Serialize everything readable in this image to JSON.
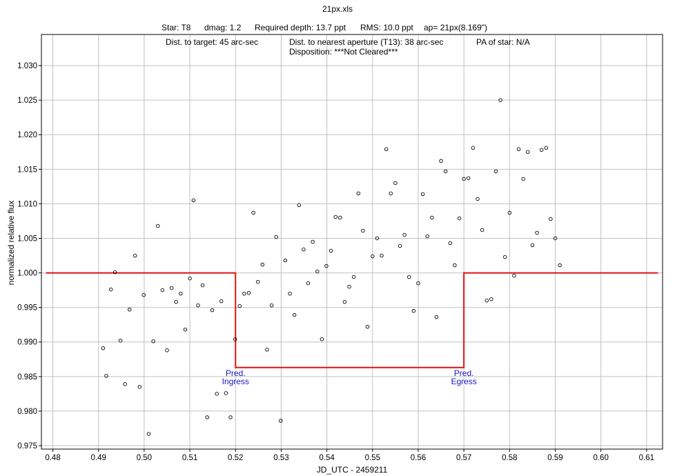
{
  "chart_data": {
    "type": "scatter",
    "title": "21px.xls",
    "header": {
      "star": "Star: T8",
      "dmag": "dmag: 1.2",
      "required_depth": "Required depth: 13.7 ppt",
      "rms": "RMS: 10.0 ppt",
      "aperture": "ap= 21px(8.169\")"
    },
    "info": {
      "dist_target": "Dist. to target: 45 arc-sec",
      "dist_nearest": "Dist. to nearest aperture (T13): 38 arc-sec",
      "pa": "PA of star: N/A",
      "disposition": "Disposition: ***Not Cleared***"
    },
    "xlabel": "JD_UTC - 2459211",
    "ylabel": "normalized relative flux",
    "xlim": [
      0.4775,
      0.6135
    ],
    "ylim": [
      0.9745,
      1.0345
    ],
    "x_ticks": [
      "0.48",
      "0.49",
      "0.50",
      "0.51",
      "0.52",
      "0.53",
      "0.54",
      "0.55",
      "0.56",
      "0.57",
      "0.58",
      "0.59",
      "0.60",
      "0.61"
    ],
    "y_ticks": [
      "0.975",
      "0.980",
      "0.985",
      "0.990",
      "0.995",
      "1.000",
      "1.005",
      "1.010",
      "1.015",
      "1.020",
      "1.025",
      "1.030"
    ],
    "grid": true,
    "colors": {
      "model": "#e01010",
      "annotation": "#1515c8",
      "points": "#000000",
      "grid": "#c0c0c0"
    },
    "annotations": [
      {
        "line1": "Pred.",
        "line2": "Ingress",
        "x": 0.52,
        "y": 0.9851
      },
      {
        "line1": "Pred.",
        "line2": "Egress",
        "x": 0.57,
        "y": 0.9851
      }
    ],
    "model": {
      "x": [
        0.4785,
        0.52,
        0.52,
        0.57,
        0.57,
        0.6125
      ],
      "y": [
        1.0,
        1.0,
        0.9863,
        0.9863,
        1.0,
        1.0
      ]
    },
    "points": [
      [
        0.491,
        0.9891
      ],
      [
        0.4917,
        0.9851
      ],
      [
        0.4927,
        0.9976
      ],
      [
        0.4936,
        1.0001
      ],
      [
        0.4948,
        0.9902
      ],
      [
        0.4958,
        0.9839
      ],
      [
        0.4968,
        0.9947
      ],
      [
        0.498,
        1.0025
      ],
      [
        0.499,
        0.9835
      ],
      [
        0.4999,
        0.9968
      ],
      [
        0.501,
        0.9767
      ],
      [
        0.502,
        0.9901
      ],
      [
        0.503,
        1.0068
      ],
      [
        0.504,
        0.9975
      ],
      [
        0.505,
        0.9888
      ],
      [
        0.506,
        0.9978
      ],
      [
        0.507,
        0.9958
      ],
      [
        0.508,
        0.997
      ],
      [
        0.509,
        0.9918
      ],
      [
        0.51,
        0.9992
      ],
      [
        0.5108,
        1.0105
      ],
      [
        0.5118,
        0.9953
      ],
      [
        0.5128,
        0.9982
      ],
      [
        0.5138,
        0.9791
      ],
      [
        0.5149,
        0.9946
      ],
      [
        0.5159,
        0.9825
      ],
      [
        0.5169,
        0.9959
      ],
      [
        0.5179,
        0.9826
      ],
      [
        0.5189,
        0.9791
      ],
      [
        0.5199,
        0.9904
      ],
      [
        0.5209,
        0.9952
      ],
      [
        0.5219,
        0.997
      ],
      [
        0.5229,
        0.9971
      ],
      [
        0.5239,
        1.0087
      ],
      [
        0.5249,
        0.9987
      ],
      [
        0.5259,
        1.0012
      ],
      [
        0.5269,
        0.9889
      ],
      [
        0.5279,
        0.9953
      ],
      [
        0.5289,
        1.0052
      ],
      [
        0.5299,
        0.9786
      ],
      [
        0.5309,
        1.0018
      ],
      [
        0.5319,
        0.997
      ],
      [
        0.5329,
        0.9939
      ],
      [
        0.5339,
        1.0098
      ],
      [
        0.5349,
        1.0034
      ],
      [
        0.5359,
        0.9985
      ],
      [
        0.5369,
        1.0045
      ],
      [
        0.5379,
        1.0002
      ],
      [
        0.5389,
        0.9904
      ],
      [
        0.5399,
        1.001
      ],
      [
        0.5409,
        1.0032
      ],
      [
        0.5419,
        1.0081
      ],
      [
        0.5429,
        1.008
      ],
      [
        0.5439,
        0.9958
      ],
      [
        0.5449,
        0.998
      ],
      [
        0.5459,
        0.9994
      ],
      [
        0.5469,
        1.0115
      ],
      [
        0.5479,
        1.0061
      ],
      [
        0.5489,
        0.9922
      ],
      [
        0.55,
        1.0024
      ],
      [
        0.551,
        1.005
      ],
      [
        0.552,
        1.0025
      ],
      [
        0.553,
        1.0179
      ],
      [
        0.554,
        1.0115
      ],
      [
        0.555,
        1.013
      ],
      [
        0.556,
        1.0039
      ],
      [
        0.557,
        1.0055
      ],
      [
        0.558,
        0.9994
      ],
      [
        0.559,
        0.9945
      ],
      [
        0.56,
        0.9985
      ],
      [
        0.561,
        1.0114
      ],
      [
        0.562,
        1.0053
      ],
      [
        0.563,
        1.008
      ],
      [
        0.564,
        0.9936
      ],
      [
        0.565,
        1.0162
      ],
      [
        0.566,
        1.0147
      ],
      [
        0.567,
        1.0043
      ],
      [
        0.568,
        1.0011
      ],
      [
        0.569,
        1.0079
      ],
      [
        0.57,
        1.0136
      ],
      [
        0.571,
        1.0137
      ],
      [
        0.572,
        1.0181
      ],
      [
        0.573,
        1.0107
      ],
      [
        0.574,
        1.0062
      ],
      [
        0.575,
        0.996
      ],
      [
        0.576,
        0.9962
      ],
      [
        0.577,
        1.0147
      ],
      [
        0.578,
        1.025
      ],
      [
        0.579,
        1.0023
      ],
      [
        0.58,
        1.0087
      ],
      [
        0.581,
        0.9996
      ],
      [
        0.582,
        1.0179
      ],
      [
        0.583,
        1.0136
      ],
      [
        0.584,
        1.0175
      ],
      [
        0.585,
        1.004
      ],
      [
        0.586,
        1.0058
      ],
      [
        0.587,
        1.0178
      ],
      [
        0.588,
        1.0181
      ],
      [
        0.589,
        1.0078
      ],
      [
        0.59,
        1.005
      ],
      [
        0.591,
        1.0011
      ]
    ]
  }
}
